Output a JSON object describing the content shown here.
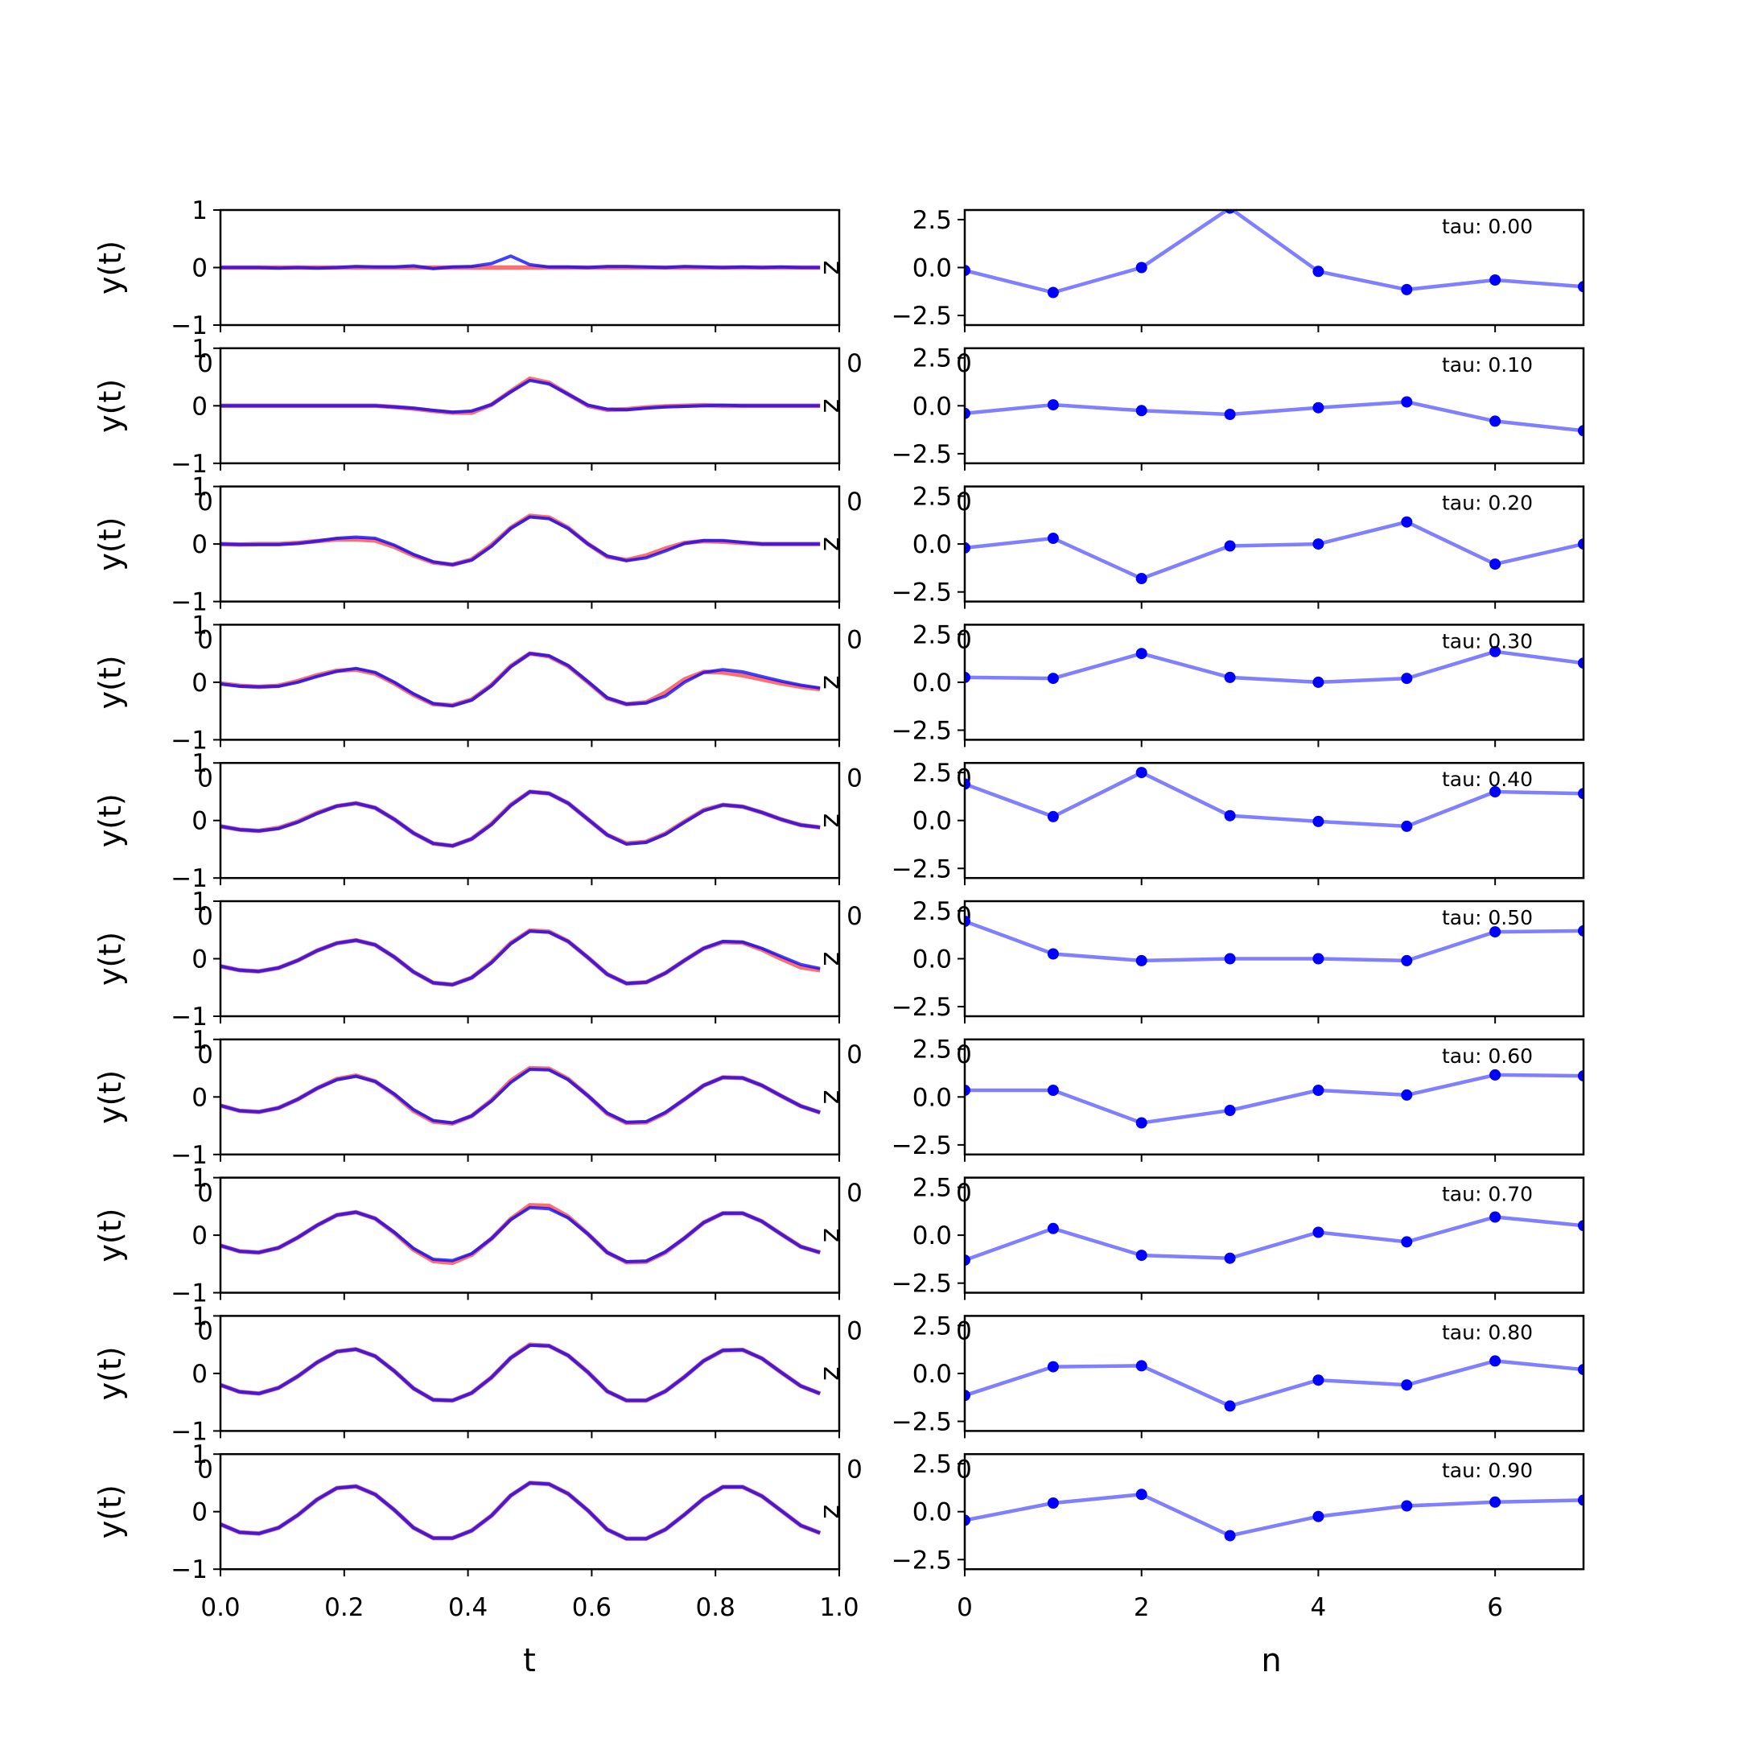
{
  "chart_data": [
    {
      "type": "line",
      "panel": "left",
      "xlabel": "t",
      "ylabel": "y(t)",
      "side_label": "z",
      "xlim": [
        0.0,
        1.0
      ],
      "ylim": [
        -1,
        1
      ],
      "yticks": [
        -1,
        0,
        1
      ],
      "xticks": [
        0.0,
        0.2,
        0.4,
        0.6,
        0.8,
        1.0
      ],
      "tick_labels_x": [
        "0.0",
        "0.2",
        "0.4",
        "0.6",
        "0.8",
        "1.0"
      ],
      "tick_labels_y": [
        "−1",
        "0",
        "1"
      ],
      "overlap_tick_label": "0",
      "t": [
        0.0,
        0.031,
        0.062,
        0.094,
        0.125,
        0.156,
        0.188,
        0.219,
        0.25,
        0.281,
        0.312,
        0.344,
        0.375,
        0.406,
        0.438,
        0.469,
        0.5,
        0.531,
        0.562,
        0.594,
        0.625,
        0.656,
        0.688,
        0.719,
        0.75,
        0.781,
        0.812,
        0.844,
        0.875,
        0.906,
        0.938,
        0.969
      ],
      "series_colors": {
        "reference": "#ff5555",
        "reconstruction": "#0000ff"
      },
      "rows": [
        {
          "tau": 0.0,
          "reference": [
            0.0,
            0.0,
            0.0,
            0.0,
            0.0,
            0.0,
            0.0,
            0.0,
            0.0,
            0.0,
            0.0,
            0.0,
            0.0,
            0.0,
            0.0,
            0.0,
            0.0,
            0.0,
            0.0,
            0.0,
            0.0,
            0.0,
            0.0,
            0.0,
            0.0,
            0.0,
            0.0,
            0.0,
            0.0,
            0.0,
            0.0,
            0.0
          ],
          "reconstruction": [
            0.0,
            0.0,
            0.0,
            -0.01,
            0.0,
            -0.01,
            0.0,
            0.02,
            0.01,
            0.01,
            0.03,
            -0.02,
            0.01,
            0.02,
            0.07,
            0.2,
            0.05,
            0.01,
            0.01,
            0.0,
            0.02,
            0.02,
            0.01,
            0.0,
            0.02,
            0.01,
            0.0,
            0.01,
            0.0,
            0.01,
            0.0,
            0.0
          ]
        },
        {
          "tau": 0.1,
          "reference": [
            0.0,
            0.0,
            0.0,
            0.0,
            0.0,
            0.0,
            0.0,
            0.0,
            0.0,
            -0.02,
            -0.05,
            -0.09,
            -0.12,
            -0.12,
            0.02,
            0.25,
            0.47,
            0.4,
            0.2,
            0.0,
            -0.07,
            -0.06,
            -0.03,
            -0.01,
            0.0,
            0.01,
            0.0,
            0.0,
            0.0,
            0.0,
            0.0,
            0.0
          ],
          "reconstruction": [
            0.0,
            0.0,
            0.0,
            0.0,
            0.0,
            0.0,
            0.0,
            0.0,
            0.0,
            -0.02,
            -0.04,
            -0.08,
            -0.11,
            -0.09,
            0.02,
            0.24,
            0.44,
            0.38,
            0.2,
            0.01,
            -0.06,
            -0.07,
            -0.04,
            -0.02,
            -0.01,
            0.0,
            0.01,
            0.0,
            0.0,
            0.0,
            0.0,
            0.0
          ]
        },
        {
          "tau": 0.2,
          "reference": [
            0.0,
            -0.01,
            0.0,
            0.0,
            0.02,
            0.05,
            0.08,
            0.08,
            0.06,
            -0.05,
            -0.2,
            -0.32,
            -0.36,
            -0.27,
            -0.02,
            0.28,
            0.49,
            0.46,
            0.28,
            0.0,
            -0.22,
            -0.28,
            -0.2,
            -0.08,
            0.02,
            0.05,
            0.04,
            0.02,
            0.0,
            0.0,
            0.0,
            0.0
          ],
          "reconstruction": [
            0.0,
            -0.01,
            -0.01,
            -0.01,
            0.01,
            0.05,
            0.1,
            0.12,
            0.1,
            -0.02,
            -0.18,
            -0.31,
            -0.36,
            -0.28,
            -0.04,
            0.27,
            0.47,
            0.44,
            0.27,
            0.0,
            -0.21,
            -0.29,
            -0.24,
            -0.12,
            0.01,
            0.06,
            0.06,
            0.03,
            0.0,
            0.0,
            0.0,
            0.0
          ]
        },
        {
          "tau": 0.3,
          "reference": [
            -0.02,
            -0.06,
            -0.08,
            -0.06,
            0.02,
            0.12,
            0.2,
            0.22,
            0.15,
            -0.02,
            -0.22,
            -0.38,
            -0.4,
            -0.3,
            -0.05,
            0.28,
            0.5,
            0.45,
            0.28,
            0.0,
            -0.28,
            -0.38,
            -0.35,
            -0.18,
            0.05,
            0.18,
            0.17,
            0.12,
            0.05,
            -0.02,
            -0.08,
            -0.12
          ],
          "reconstruction": [
            -0.03,
            -0.07,
            -0.08,
            -0.07,
            0.0,
            0.1,
            0.19,
            0.24,
            0.17,
            0.0,
            -0.2,
            -0.37,
            -0.41,
            -0.31,
            -0.06,
            0.27,
            0.5,
            0.46,
            0.29,
            0.01,
            -0.27,
            -0.38,
            -0.36,
            -0.24,
            0.0,
            0.17,
            0.22,
            0.18,
            0.1,
            0.02,
            -0.05,
            -0.1
          ]
        },
        {
          "tau": 0.4,
          "reference": [
            -0.1,
            -0.16,
            -0.18,
            -0.13,
            -0.02,
            0.13,
            0.25,
            0.3,
            0.22,
            0.02,
            -0.22,
            -0.4,
            -0.44,
            -0.32,
            -0.06,
            0.27,
            0.5,
            0.47,
            0.3,
            0.02,
            -0.25,
            -0.4,
            -0.37,
            -0.23,
            -0.02,
            0.18,
            0.27,
            0.24,
            0.14,
            0.02,
            -0.08,
            -0.12
          ],
          "reconstruction": [
            -0.1,
            -0.16,
            -0.18,
            -0.14,
            -0.03,
            0.12,
            0.25,
            0.3,
            0.22,
            0.02,
            -0.22,
            -0.4,
            -0.44,
            -0.32,
            -0.07,
            0.26,
            0.5,
            0.47,
            0.3,
            0.02,
            -0.25,
            -0.41,
            -0.38,
            -0.24,
            -0.03,
            0.17,
            0.27,
            0.24,
            0.14,
            0.02,
            -0.08,
            -0.12
          ]
        },
        {
          "tau": 0.5,
          "reference": [
            -0.13,
            -0.2,
            -0.22,
            -0.16,
            -0.03,
            0.14,
            0.27,
            0.32,
            0.24,
            0.03,
            -0.23,
            -0.42,
            -0.45,
            -0.33,
            -0.06,
            0.27,
            0.49,
            0.47,
            0.3,
            0.02,
            -0.27,
            -0.43,
            -0.41,
            -0.25,
            -0.03,
            0.18,
            0.29,
            0.28,
            0.16,
            0.0,
            -0.15,
            -0.2
          ],
          "reconstruction": [
            -0.13,
            -0.2,
            -0.22,
            -0.16,
            -0.03,
            0.14,
            0.27,
            0.32,
            0.24,
            0.03,
            -0.23,
            -0.42,
            -0.45,
            -0.33,
            -0.07,
            0.26,
            0.48,
            0.46,
            0.3,
            0.02,
            -0.27,
            -0.43,
            -0.41,
            -0.25,
            -0.03,
            0.18,
            0.3,
            0.29,
            0.18,
            0.04,
            -0.1,
            -0.17
          ]
        },
        {
          "tau": 0.6,
          "reference": [
            -0.15,
            -0.24,
            -0.26,
            -0.19,
            -0.04,
            0.15,
            0.31,
            0.37,
            0.27,
            0.04,
            -0.24,
            -0.43,
            -0.46,
            -0.33,
            -0.06,
            0.28,
            0.5,
            0.49,
            0.31,
            0.02,
            -0.29,
            -0.45,
            -0.44,
            -0.28,
            -0.04,
            0.2,
            0.34,
            0.33,
            0.2,
            0.02,
            -0.16,
            -0.27
          ],
          "reconstruction": [
            -0.15,
            -0.24,
            -0.26,
            -0.19,
            -0.04,
            0.15,
            0.3,
            0.36,
            0.27,
            0.05,
            -0.22,
            -0.41,
            -0.45,
            -0.33,
            -0.07,
            0.25,
            0.48,
            0.47,
            0.3,
            0.02,
            -0.28,
            -0.44,
            -0.43,
            -0.27,
            -0.04,
            0.2,
            0.34,
            0.33,
            0.2,
            0.02,
            -0.16,
            -0.27
          ]
        },
        {
          "tau": 0.7,
          "reference": [
            -0.18,
            -0.28,
            -0.3,
            -0.22,
            -0.04,
            0.17,
            0.35,
            0.4,
            0.29,
            0.04,
            -0.25,
            -0.45,
            -0.48,
            -0.34,
            -0.06,
            0.28,
            0.52,
            0.51,
            0.32,
            0.02,
            -0.3,
            -0.47,
            -0.46,
            -0.3,
            -0.05,
            0.22,
            0.38,
            0.38,
            0.24,
            0.02,
            -0.2,
            -0.3
          ],
          "reconstruction": [
            -0.18,
            -0.28,
            -0.3,
            -0.22,
            -0.04,
            0.17,
            0.35,
            0.4,
            0.29,
            0.05,
            -0.23,
            -0.42,
            -0.44,
            -0.32,
            -0.06,
            0.27,
            0.48,
            0.46,
            0.3,
            0.02,
            -0.3,
            -0.46,
            -0.45,
            -0.29,
            -0.05,
            0.22,
            0.38,
            0.38,
            0.24,
            0.02,
            -0.2,
            -0.3
          ]
        },
        {
          "tau": 0.8,
          "reference": [
            -0.2,
            -0.32,
            -0.35,
            -0.25,
            -0.05,
            0.19,
            0.38,
            0.42,
            0.3,
            0.04,
            -0.26,
            -0.46,
            -0.47,
            -0.34,
            -0.07,
            0.27,
            0.5,
            0.48,
            0.31,
            0.02,
            -0.31,
            -0.47,
            -0.47,
            -0.31,
            -0.06,
            0.22,
            0.4,
            0.41,
            0.26,
            0.02,
            -0.22,
            -0.35
          ],
          "reconstruction": [
            -0.2,
            -0.32,
            -0.35,
            -0.25,
            -0.05,
            0.19,
            0.38,
            0.42,
            0.3,
            0.04,
            -0.26,
            -0.46,
            -0.47,
            -0.34,
            -0.07,
            0.27,
            0.49,
            0.48,
            0.31,
            0.02,
            -0.31,
            -0.47,
            -0.47,
            -0.31,
            -0.06,
            0.22,
            0.4,
            0.41,
            0.26,
            0.02,
            -0.22,
            -0.35
          ]
        },
        {
          "tau": 0.9,
          "reference": [
            -0.22,
            -0.36,
            -0.38,
            -0.28,
            -0.06,
            0.21,
            0.41,
            0.44,
            0.3,
            0.03,
            -0.28,
            -0.46,
            -0.46,
            -0.33,
            -0.07,
            0.28,
            0.5,
            0.48,
            0.31,
            0.02,
            -0.31,
            -0.47,
            -0.47,
            -0.31,
            -0.05,
            0.23,
            0.43,
            0.43,
            0.27,
            0.02,
            -0.24,
            -0.37
          ],
          "reconstruction": [
            -0.22,
            -0.36,
            -0.38,
            -0.28,
            -0.06,
            0.21,
            0.41,
            0.44,
            0.3,
            0.03,
            -0.28,
            -0.46,
            -0.46,
            -0.33,
            -0.07,
            0.28,
            0.5,
            0.48,
            0.31,
            0.02,
            -0.31,
            -0.47,
            -0.47,
            -0.31,
            -0.05,
            0.23,
            0.43,
            0.43,
            0.27,
            0.02,
            -0.24,
            -0.37
          ]
        }
      ]
    },
    {
      "type": "line",
      "panel": "right",
      "marker": "circle",
      "xlabel": "n",
      "xlim": [
        0,
        7
      ],
      "ylim": [
        -3.0,
        3.0
      ],
      "yticks": [
        -2.5,
        0.0,
        2.5
      ],
      "tick_labels_y": [
        "−2.5",
        "0.0",
        "2.5"
      ],
      "xticks": [
        0,
        2,
        4,
        6
      ],
      "tick_labels_x": [
        "0",
        "2",
        "4",
        "6"
      ],
      "overlap_tick_label": "0",
      "line_color": "#0000ff",
      "line_alpha": 0.5,
      "x": [
        0,
        1,
        2,
        3,
        4,
        5,
        6,
        7
      ],
      "rows": [
        {
          "tau": "tau: 0.00",
          "values": [
            -0.15,
            -1.3,
            0.0,
            3.1,
            -0.2,
            -1.15,
            -0.65,
            -1.0
          ]
        },
        {
          "tau": "tau: 0.10",
          "values": [
            -0.4,
            0.05,
            -0.25,
            -0.45,
            -0.1,
            0.2,
            -0.8,
            -1.3
          ]
        },
        {
          "tau": "tau: 0.20",
          "values": [
            -0.2,
            0.3,
            -1.8,
            -0.1,
            0.0,
            1.15,
            -1.05,
            0.0
          ]
        },
        {
          "tau": "tau: 0.30",
          "values": [
            0.25,
            0.2,
            1.5,
            0.25,
            0.0,
            0.2,
            1.6,
            1.0
          ]
        },
        {
          "tau": "tau: 0.40",
          "values": [
            1.9,
            0.2,
            2.5,
            0.25,
            -0.05,
            -0.3,
            1.5,
            1.4
          ]
        },
        {
          "tau": "tau: 0.50",
          "values": [
            1.95,
            0.25,
            -0.1,
            0.0,
            0.0,
            -0.1,
            1.4,
            1.45
          ]
        },
        {
          "tau": "tau: 0.60",
          "values": [
            0.35,
            0.35,
            -1.35,
            -0.7,
            0.35,
            0.1,
            1.15,
            1.1
          ]
        },
        {
          "tau": "tau: 0.70",
          "values": [
            -1.3,
            0.35,
            -1.05,
            -1.2,
            0.15,
            -0.35,
            0.95,
            0.5
          ]
        },
        {
          "tau": "tau: 0.80",
          "values": [
            -1.15,
            0.35,
            0.4,
            -1.7,
            -0.35,
            -0.6,
            0.65,
            0.2
          ]
        },
        {
          "tau": "tau: 0.90",
          "values": [
            -0.45,
            0.45,
            0.9,
            -1.25,
            -0.25,
            0.3,
            0.5,
            0.6
          ]
        }
      ]
    }
  ]
}
